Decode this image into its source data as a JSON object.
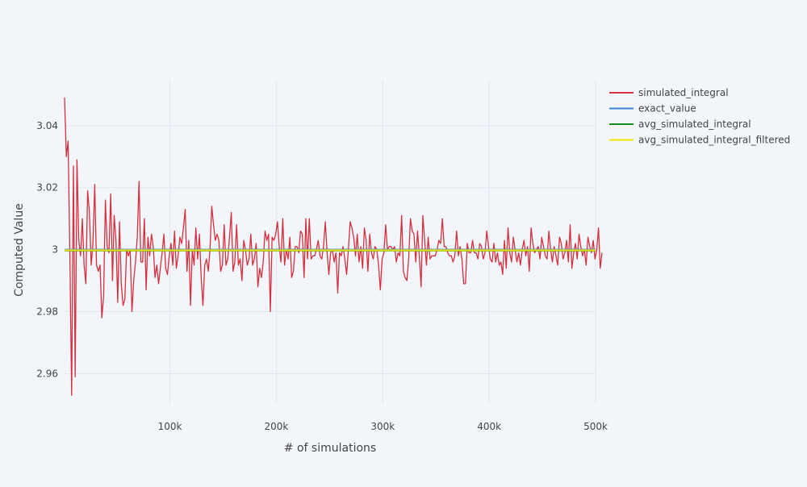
{
  "chart_data": {
    "type": "line",
    "title": "",
    "xlabel": "# of simulations",
    "ylabel": "Computed Value",
    "xlim": [
      1000,
      500000
    ],
    "ylim": [
      2.9505,
      3.0545
    ],
    "grid": true,
    "legend_position": "top-right",
    "x_ticks": [
      {
        "value": 100000,
        "label": "100k"
      },
      {
        "value": 200000,
        "label": "200k"
      },
      {
        "value": 300000,
        "label": "300k"
      },
      {
        "value": 400000,
        "label": "400k"
      },
      {
        "value": 500000,
        "label": "500k"
      }
    ],
    "y_ticks": [
      {
        "value": 2.96,
        "label": "2.96"
      },
      {
        "value": 2.98,
        "label": "2.98"
      },
      {
        "value": 3.0,
        "label": "3"
      },
      {
        "value": 3.02,
        "label": "3.02"
      },
      {
        "value": 3.04,
        "label": "3.04"
      }
    ],
    "x": {
      "start": 1000,
      "step": 1667,
      "count": 300
    },
    "series": [
      {
        "name": "simulated_integral",
        "color": "#d62f3c",
        "values": [
          3.049,
          3.03,
          3.035,
          2.998,
          2.953,
          3.027,
          2.959,
          3.029,
          3.003,
          2.998,
          3.01,
          2.995,
          2.989,
          3.019,
          3.012,
          2.995,
          3.002,
          3.021,
          2.995,
          2.993,
          2.995,
          2.978,
          2.985,
          3.016,
          3.001,
          2.999,
          3.018,
          2.99,
          3.011,
          3.003,
          2.983,
          3.009,
          2.989,
          2.982,
          2.984,
          3.0,
          2.998,
          3.0,
          2.98,
          2.99,
          2.996,
          3.004,
          3.022,
          2.996,
          2.996,
          3.01,
          2.987,
          3.004,
          2.998,
          3.005,
          3.001,
          2.991,
          2.995,
          2.989,
          2.994,
          2.999,
          3.005,
          2.994,
          2.992,
          2.998,
          3.002,
          2.995,
          3.006,
          2.994,
          2.998,
          3.004,
          3.002,
          3.007,
          3.013,
          2.993,
          3.003,
          2.982,
          3.0,
          2.995,
          3.007,
          2.997,
          3.005,
          2.991,
          2.982,
          2.995,
          2.997,
          2.993,
          3.0,
          3.014,
          3.008,
          3.003,
          3.005,
          3.003,
          2.993,
          2.995,
          3.008,
          2.995,
          2.997,
          3.004,
          3.012,
          2.993,
          2.996,
          3.008,
          2.995,
          2.997,
          2.99,
          3.003,
          3.0,
          2.995,
          2.997,
          3.005,
          2.995,
          2.997,
          3.002,
          2.988,
          2.994,
          2.991,
          2.996,
          3.006,
          3.003,
          3.005,
          2.98,
          3.004,
          3.003,
          3.005,
          3.009,
          3.001,
          2.996,
          3.01,
          2.995,
          3.0,
          2.997,
          3.004,
          2.991,
          2.993,
          3.001,
          3.001,
          2.999,
          3.006,
          3.005,
          2.991,
          3.01,
          2.997,
          3.01,
          2.997,
          2.998,
          2.998,
          3.0,
          3.003,
          2.998,
          2.997,
          3.001,
          3.009,
          2.999,
          2.992,
          2.999,
          3.0,
          2.996,
          2.999,
          2.986,
          2.999,
          2.998,
          3.001,
          2.997,
          2.992,
          3.0,
          3.009,
          3.007,
          3.004,
          2.998,
          3.005,
          2.996,
          3.001,
          2.994,
          3.007,
          3.003,
          2.993,
          3.005,
          2.999,
          2.997,
          3.001,
          3.0,
          2.995,
          2.987,
          2.997,
          2.999,
          3.008,
          3.0,
          3.001,
          3.001,
          3.0,
          3.001,
          2.996,
          2.999,
          2.998,
          3.011,
          2.993,
          2.991,
          2.99,
          2.997,
          3.01,
          3.006,
          3.005,
          2.996,
          3.006,
          2.998,
          2.988,
          3.011,
          3.003,
          2.995,
          3.004,
          2.997,
          2.998,
          2.998,
          2.998,
          3.0,
          3.003,
          3.002,
          3.01,
          3.001,
          3.001,
          2.999,
          2.998,
          2.998,
          2.996,
          2.998,
          3.006,
          2.998,
          3.001,
          2.997,
          2.989,
          2.989,
          3.002,
          2.999,
          2.999,
          3.003,
          2.999,
          2.999,
          2.997,
          3.002,
          3.001,
          2.997,
          2.999,
          3.006,
          3.001,
          2.997,
          2.996,
          3.002,
          2.996,
          2.999,
          2.995,
          2.996,
          2.992,
          3.003,
          2.994,
          3.007,
          2.999,
          2.996,
          3.004,
          3.0,
          2.996,
          2.999,
          2.995,
          3.0,
          3.003,
          2.998,
          3.001,
          2.993,
          3.007,
          3.002,
          2.999,
          3.0,
          3.001,
          2.997,
          3.004,
          3.001,
          2.998,
          2.997,
          3.006,
          3.0,
          2.996,
          3.001,
          2.998,
          2.995,
          3.004,
          3.002,
          2.997,
          2.999,
          3.003,
          2.996,
          3.008,
          2.994,
          2.999,
          3.002,
          2.997,
          3.005,
          3.001,
          2.998,
          3.0,
          2.995,
          3.004,
          3.001,
          2.999,
          3.003,
          2.997,
          3.0,
          3.007,
          2.994,
          2.999
        ]
      },
      {
        "name": "exact_value",
        "color": "#3d7fd6",
        "values": [
          3.0,
          3.0
        ]
      },
      {
        "name": "avg_simulated_integral",
        "color": "#1a8c1a",
        "values": [
          2.9997,
          2.9997
        ]
      },
      {
        "name": "avg_simulated_integral_filtered",
        "color": "#f2e600",
        "values": [
          2.9998,
          2.9998
        ]
      }
    ]
  }
}
